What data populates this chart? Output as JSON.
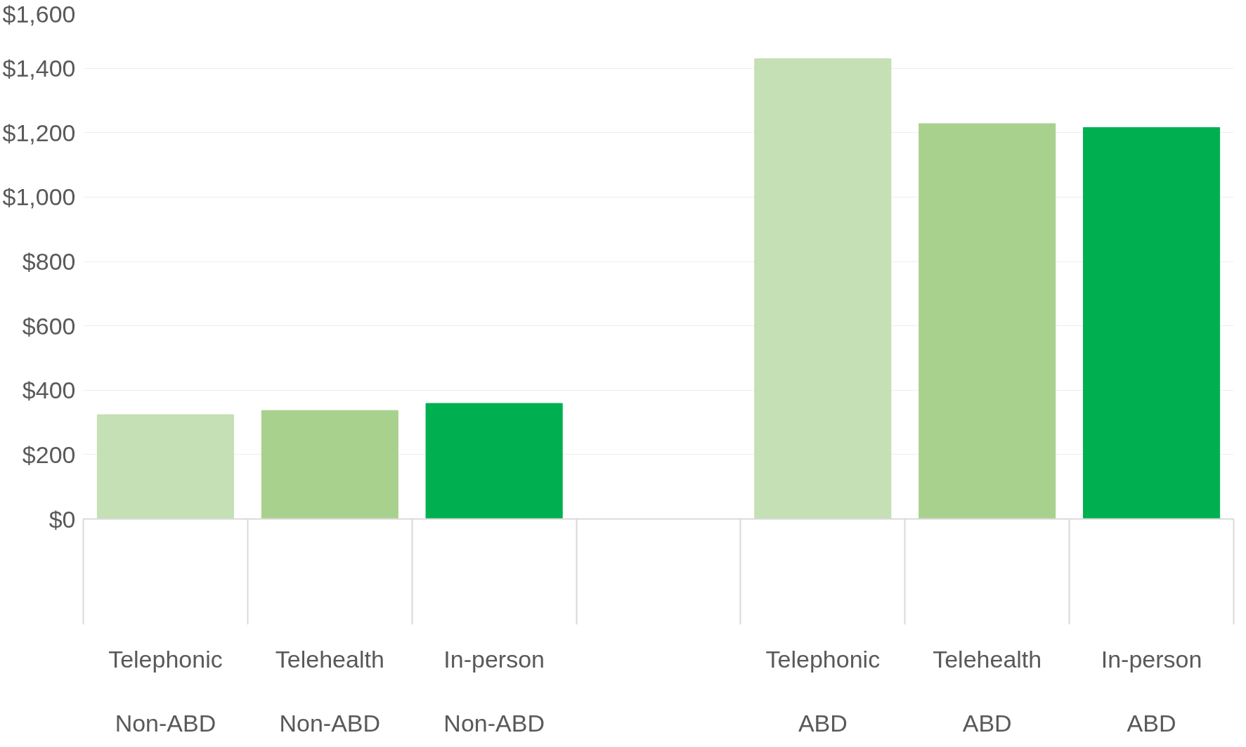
{
  "chart_data": {
    "type": "bar",
    "categories": [
      "Telephonic\n\nNon-ABD",
      "Telehealth\n\nNon-ABD",
      "In-person\n\nNon-ABD",
      null,
      "Telephonic\n\nABD",
      "Telehealth\n\nABD",
      "In-person\n\nABD"
    ],
    "values": [
      324,
      337,
      359,
      null,
      1430,
      1228,
      1216
    ],
    "colors": [
      "#c5e0b4",
      "#a9d18e",
      "#00b050",
      null,
      "#c5e0b4",
      "#a9d18e",
      "#00b050"
    ],
    "ylim": [
      0,
      1600
    ],
    "yticks": [
      {
        "value": 0,
        "label": "$0"
      },
      {
        "value": 200,
        "label": "$200"
      },
      {
        "value": 400,
        "label": "$400"
      },
      {
        "value": 600,
        "label": "$600"
      },
      {
        "value": 800,
        "label": "$800"
      },
      {
        "value": 1000,
        "label": "$1,000"
      },
      {
        "value": 1200,
        "label": "$1,200"
      },
      {
        "value": 1400,
        "label": "$1,400"
      },
      {
        "value": 1600,
        "label": "$1,600"
      }
    ],
    "grid": "y"
  }
}
